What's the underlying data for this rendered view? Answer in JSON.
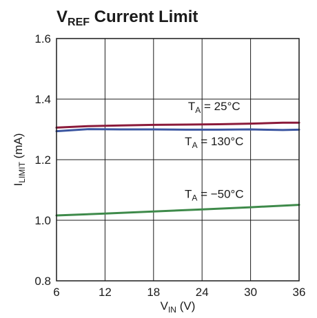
{
  "chart_data": {
    "type": "line",
    "title": {
      "main": "V",
      "sub": "REF",
      "rest": " Current Limit"
    },
    "xlabel": {
      "main": "V",
      "sub": "IN",
      "rest": " (V)"
    },
    "ylabel": {
      "main": "I",
      "sub": "LIMIT",
      "rest": " (mA)"
    },
    "xlim": [
      6,
      36
    ],
    "ylim": [
      0.8,
      1.6
    ],
    "x_ticks": [
      6,
      12,
      18,
      24,
      30,
      36
    ],
    "y_ticks": [
      0.8,
      1.0,
      1.2,
      1.4,
      1.6
    ],
    "x_tick_labels": [
      "6",
      "12",
      "18",
      "24",
      "30",
      "36"
    ],
    "y_tick_labels": [
      "0.8",
      "1.0",
      "1.2",
      "1.4",
      "1.6"
    ],
    "grid": true,
    "series": [
      {
        "name": "TA = 25°C",
        "label": {
          "main": "T",
          "sub": "A",
          "rest": " = 25°C"
        },
        "color": "#8b1a3a",
        "x": [
          6,
          10,
          14,
          18,
          22,
          26,
          30,
          34,
          36
        ],
        "y": [
          1.306,
          1.311,
          1.313,
          1.315,
          1.316,
          1.317,
          1.319,
          1.322,
          1.322
        ]
      },
      {
        "name": "TA = 130°C",
        "label": {
          "main": "T",
          "sub": "A",
          "rest": " = 130°C"
        },
        "color": "#3a55a0",
        "x": [
          6,
          10,
          14,
          18,
          22,
          26,
          30,
          34,
          36
        ],
        "y": [
          1.294,
          1.301,
          1.3,
          1.3,
          1.299,
          1.299,
          1.3,
          1.298,
          1.299
        ]
      },
      {
        "name": "TA = −50°C",
        "label": {
          "main": "T",
          "sub": "A",
          "rest": " = −50°C"
        },
        "color": "#3e8a4a",
        "x": [
          6,
          12,
          18,
          24,
          30,
          36
        ],
        "y": [
          1.016,
          1.022,
          1.029,
          1.036,
          1.043,
          1.051
        ]
      }
    ]
  }
}
